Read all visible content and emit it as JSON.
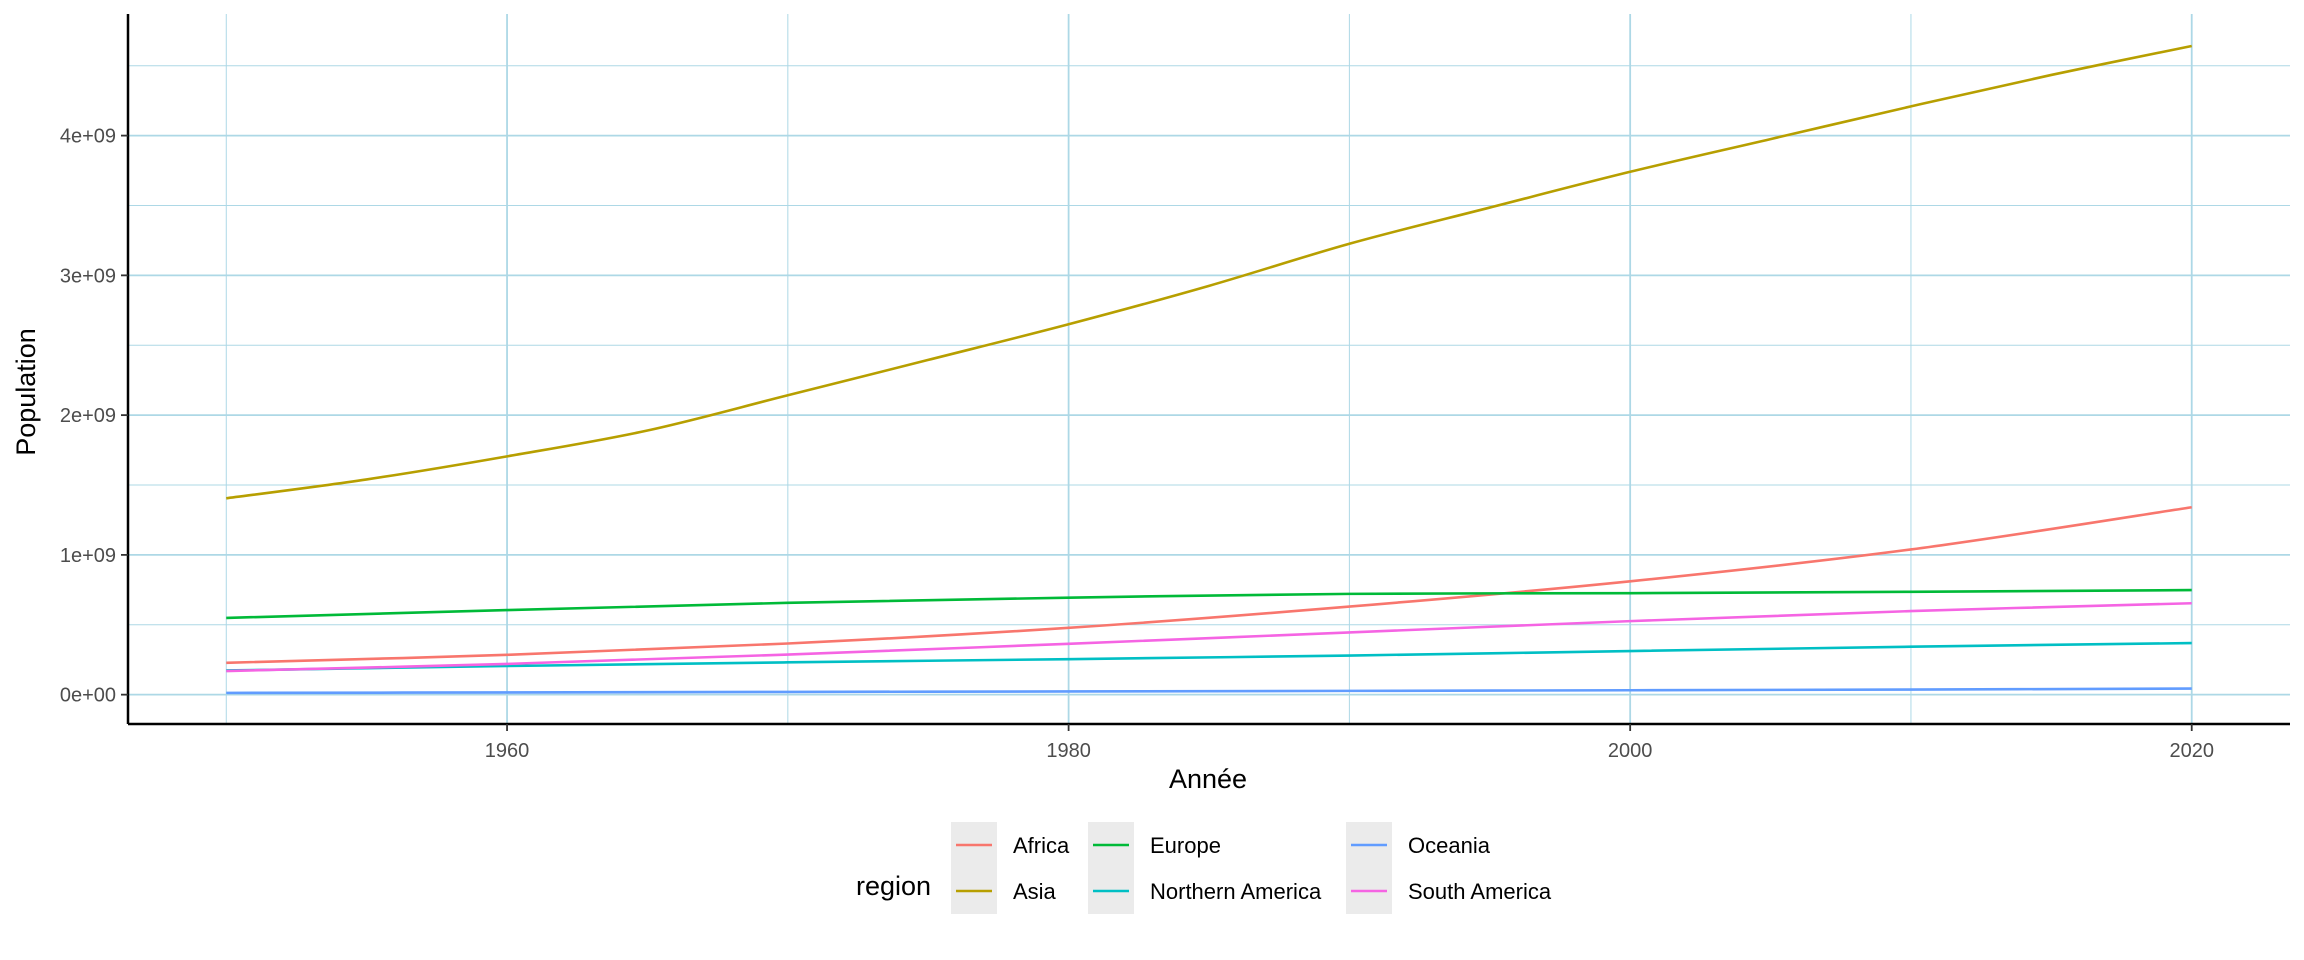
{
  "chart_data": {
    "type": "line",
    "title": "",
    "xlabel": "Année",
    "ylabel": "Population",
    "xlim": [
      1946.5,
      2023.5
    ],
    "ylim": [
      -210000000,
      4870000000
    ],
    "x_ticks": [
      1960,
      1980,
      2000,
      2020
    ],
    "x_tick_labels": [
      "1960",
      "1980",
      "2000",
      "2020"
    ],
    "x_minor_ticks": [
      1950,
      1970,
      1990,
      2010
    ],
    "y_ticks": [
      0,
      1000000000,
      2000000000,
      3000000000,
      4000000000
    ],
    "y_tick_labels": [
      "0e+00",
      "1e+09",
      "2e+09",
      "3e+09",
      "4e+09"
    ],
    "y_minor_ticks": [
      500000000,
      1500000000,
      2500000000,
      3500000000,
      4500000000
    ],
    "grid": true,
    "grid_color": "#add8e6",
    "legend": {
      "title": "region",
      "position": "bottom",
      "key_background": "#ebebeb",
      "columns": [
        [
          "Africa",
          "Asia"
        ],
        [
          "Europe",
          "Northern America"
        ],
        [
          "Oceania",
          "South America"
        ]
      ]
    },
    "series": [
      {
        "name": "Africa",
        "color": "#F8766D",
        "x": [
          1950,
          1960,
          1970,
          1980,
          1990,
          2000,
          2010,
          2020
        ],
        "values": [
          228000000,
          285000000,
          366000000,
          478000000,
          630000000,
          811000000,
          1039000000,
          1341000000
        ]
      },
      {
        "name": "Asia",
        "color": "#B79F00",
        "x": [
          1950,
          1955,
          1960,
          1965,
          1970,
          1975,
          1980,
          1985,
          1990,
          1995,
          2000,
          2005,
          2010,
          2015,
          2020
        ],
        "values": [
          1405000000,
          1540000000,
          1705000000,
          1890000000,
          2142000000,
          2395000000,
          2650000000,
          2925000000,
          3226000000,
          3485000000,
          3741000000,
          3975000000,
          4209000000,
          4434000000,
          4641000000
        ]
      },
      {
        "name": "Europe",
        "color": "#00BA38",
        "x": [
          1950,
          1960,
          1970,
          1980,
          1990,
          2000,
          2010,
          2020
        ],
        "values": [
          549000000,
          605000000,
          657000000,
          694000000,
          721000000,
          726000000,
          736000000,
          748000000
        ]
      },
      {
        "name": "Northern America",
        "color": "#00BFC4",
        "x": [
          1950,
          1960,
          1970,
          1980,
          1990,
          2000,
          2010,
          2020
        ],
        "values": [
          173000000,
          205000000,
          231000000,
          254000000,
          280000000,
          312000000,
          343000000,
          369000000
        ]
      },
      {
        "name": "Oceania",
        "color": "#619CFF",
        "x": [
          1950,
          1960,
          1970,
          1980,
          1990,
          2000,
          2010,
          2020
        ],
        "values": [
          12700000,
          15800000,
          19700000,
          22900000,
          27000000,
          31400000,
          36700000,
          43200000
        ]
      },
      {
        "name": "South America",
        "color": "#F564E3",
        "x": [
          1950,
          1960,
          1970,
          1980,
          1990,
          2000,
          2010,
          2020
        ],
        "values": [
          169000000,
          220000000,
          287000000,
          364000000,
          445000000,
          526000000,
          598000000,
          654000000
        ]
      }
    ]
  }
}
